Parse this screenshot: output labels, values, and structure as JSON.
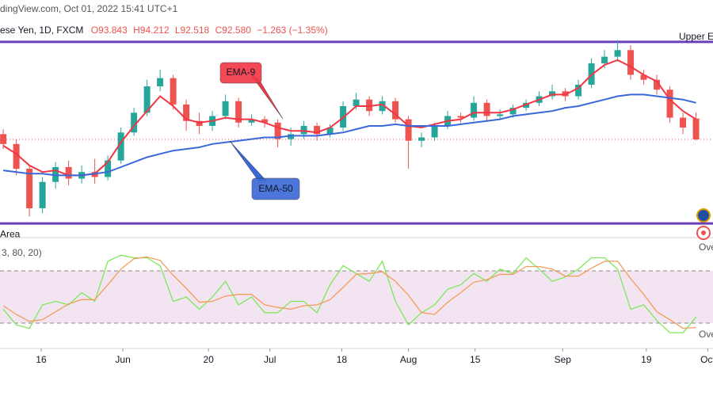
{
  "header": {
    "source": "dingView.com, Oct 01, 2022 15:41 UTC+1",
    "symbol": "ese Yen, 1D, FXCM",
    "open": "O93.843",
    "high": "H94.212",
    "low": "L92.518",
    "close": "C92.580",
    "change": "−1.263 (−1.35%)"
  },
  "chart_data": [
    {
      "type": "candlestick",
      "open": [
        92.9,
        92.3,
        90.8,
        88.4,
        90.0,
        90.9,
        90.2,
        90.6,
        90.3,
        91.3,
        93.0,
        94.2,
        95.8,
        96.3,
        94.7,
        93.7,
        93.4,
        94.0,
        94.9,
        93.6,
        93.8,
        93.6,
        92.6,
        92.9,
        93.4,
        92.9,
        93.3,
        94.6,
        95.0,
        94.3,
        94.9,
        93.8,
        92.5,
        92.7,
        93.4,
        94.0,
        93.9,
        94.8,
        94.0,
        94.1,
        94.5,
        94.8,
        95.2,
        95.5,
        95.2,
        95.9,
        97.2,
        97.6,
        98.0,
        96.5,
        96.2,
        95.6,
        93.9,
        93.843
      ],
      "high": [
        93.2,
        92.6,
        91.0,
        90.3,
        91.2,
        91.3,
        91.0,
        91.4,
        91.6,
        93.3,
        94.5,
        96.2,
        96.8,
        96.5,
        95.0,
        94.2,
        94.3,
        95.3,
        95.1,
        94.1,
        94.0,
        93.8,
        93.3,
        93.7,
        93.6,
        93.5,
        94.9,
        95.4,
        95.2,
        95.2,
        95.1,
        94.0,
        93.0,
        93.6,
        94.3,
        94.2,
        95.2,
        95.0,
        94.4,
        94.7,
        95.0,
        95.5,
        95.9,
        95.7,
        96.2,
        97.5,
        98.0,
        98.6,
        98.3,
        96.8,
        96.5,
        95.8,
        94.2,
        94.212
      ],
      "low": [
        92.0,
        90.4,
        87.9,
        88.1,
        89.6,
        89.8,
        89.9,
        89.9,
        90.1,
        91.1,
        92.8,
        94.0,
        95.5,
        94.4,
        93.1,
        92.9,
        93.1,
        93.8,
        93.3,
        93.4,
        93.3,
        92.1,
        92.2,
        92.6,
        92.5,
        92.7,
        93.1,
        94.4,
        94.0,
        94.1,
        93.6,
        90.8,
        92.1,
        92.5,
        93.2,
        93.6,
        93.7,
        93.7,
        93.8,
        93.9,
        94.3,
        94.6,
        95.0,
        94.9,
        95.0,
        95.7,
        96.9,
        97.3,
        96.2,
        95.9,
        95.3,
        93.6,
        92.9,
        92.518
      ],
      "close": [
        92.3,
        90.8,
        88.4,
        90.0,
        90.9,
        90.2,
        90.6,
        90.3,
        91.3,
        93.0,
        94.2,
        95.8,
        96.3,
        94.7,
        93.7,
        93.4,
        94.0,
        94.9,
        93.6,
        93.8,
        93.6,
        92.6,
        92.9,
        93.4,
        92.9,
        93.3,
        94.6,
        95.0,
        94.3,
        94.9,
        93.8,
        92.5,
        92.7,
        93.4,
        94.0,
        93.9,
        94.8,
        94.0,
        94.1,
        94.5,
        94.8,
        95.2,
        95.5,
        95.2,
        95.9,
        97.2,
        97.6,
        98.0,
        96.5,
        96.2,
        95.6,
        93.9,
        93.3,
        92.58
      ],
      "up_color": "#26a69a",
      "down_color": "#ef5350",
      "series": [
        {
          "name": "EMA-9",
          "color": "#f23645",
          "values": [
            92.2,
            91.7,
            91.0,
            90.6,
            90.7,
            90.4,
            90.4,
            90.5,
            91.2,
            92.4,
            93.4,
            94.3,
            95.2,
            94.6,
            93.8,
            93.6,
            93.7,
            93.9,
            93.8,
            93.8,
            93.6,
            93.3,
            93.1,
            93.1,
            93.0,
            93.3,
            93.9,
            94.6,
            94.6,
            94.7,
            94.1,
            93.4,
            93.3,
            93.5,
            93.7,
            93.8,
            94.2,
            94.2,
            94.2,
            94.4,
            94.7,
            95.0,
            95.3,
            95.3,
            95.7,
            96.5,
            97.1,
            97.4,
            97.0,
            96.5,
            96.1,
            95.0,
            94.3,
            93.8
          ]
        },
        {
          "name": "EMA-50",
          "color": "#3a68d8",
          "values": [
            90.7,
            90.6,
            90.5,
            90.5,
            90.4,
            90.4,
            90.4,
            90.5,
            90.6,
            90.9,
            91.2,
            91.5,
            91.7,
            91.9,
            92.0,
            92.1,
            92.3,
            92.4,
            92.5,
            92.6,
            92.7,
            92.7,
            92.8,
            92.8,
            92.8,
            92.9,
            93.0,
            93.2,
            93.4,
            93.4,
            93.5,
            93.4,
            93.4,
            93.4,
            93.4,
            93.5,
            93.6,
            93.7,
            93.8,
            94.0,
            94.1,
            94.2,
            94.3,
            94.5,
            94.6,
            94.8,
            95.0,
            95.2,
            95.3,
            95.3,
            95.2,
            95.1,
            95.0,
            94.8
          ]
        }
      ],
      "levels": [
        {
          "label": "Upper E",
          "value": 98.5
        },
        {
          "label": "Area",
          "value": 87.48
        }
      ],
      "level_color": "#6a3fb8",
      "ylim": [
        87.1,
        99.6
      ],
      "xlim": [
        -0.25,
        54.3
      ],
      "xticks": [
        {
          "value": 2.9,
          "label": "16"
        },
        {
          "value": 9.15,
          "label": "Jun"
        },
        {
          "value": 15.7,
          "label": "20"
        },
        {
          "value": 20.4,
          "label": "Jul"
        },
        {
          "value": 25.9,
          "label": "18"
        },
        {
          "value": 31.0,
          "label": "Aug"
        },
        {
          "value": 36.1,
          "label": "15"
        },
        {
          "value": 42.8,
          "label": "Sep"
        },
        {
          "value": 49.2,
          "label": "19"
        },
        {
          "value": 53.9,
          "label": "Oct"
        }
      ]
    },
    {
      "type": "line",
      "title": "3, 80, 20)",
      "series": [
        {
          "color": "#7ee85a",
          "values": [
            36,
            18,
            14,
            41,
            45,
            41,
            55,
            45,
            91,
            98,
            95,
            95,
            86,
            45,
            50,
            36,
            50,
            68,
            41,
            50,
            32,
            32,
            45,
            45,
            32,
            64,
            86,
            77,
            68,
            91,
            45,
            18,
            32,
            41,
            59,
            64,
            77,
            68,
            82,
            77,
            95,
            82,
            68,
            73,
            82,
            95,
            95,
            82,
            36,
            41,
            23,
            9,
            9,
            27
          ]
        },
        {
          "color": "#f39c5a",
          "values": [
            40,
            30,
            22,
            24,
            33,
            42,
            47,
            47,
            64,
            82,
            94,
            96,
            92,
            75,
            60,
            44,
            45,
            51,
            53,
            53,
            41,
            38,
            36,
            40,
            41,
            47,
            61,
            76,
            77,
            79,
            68,
            52,
            32,
            30,
            44,
            55,
            67,
            70,
            76,
            76,
            85,
            85,
            82,
            74,
            74,
            83,
            91,
            91,
            71,
            53,
            33,
            24,
            14,
            15
          ]
        }
      ],
      "hlines": [
        80,
        20
      ],
      "band_color": "#f3e4f1",
      "level_labels": [
        "Ove",
        "Ove"
      ],
      "ylim": [
        0,
        100
      ],
      "xlim": [
        -0.25,
        54.3
      ]
    }
  ]
}
